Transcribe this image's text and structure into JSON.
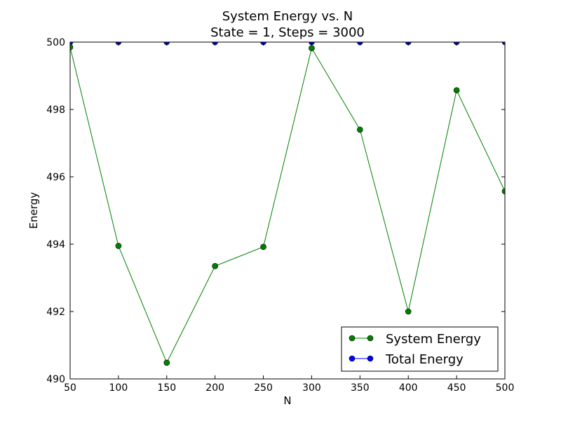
{
  "chart_data": {
    "type": "line",
    "title": "System Energy vs. N",
    "subtitle": "State = 1, Steps = 3000",
    "xlabel": "N",
    "ylabel": "Energy",
    "xlim": [
      50,
      500
    ],
    "ylim": [
      490,
      500
    ],
    "x": [
      50,
      100,
      150,
      200,
      250,
      300,
      350,
      400,
      450,
      500
    ],
    "x_ticks": [
      "50",
      "100",
      "150",
      "200",
      "250",
      "300",
      "350",
      "400",
      "450",
      "500"
    ],
    "y_ticks": [
      "490",
      "492",
      "494",
      "496",
      "498",
      "500"
    ],
    "grid": false,
    "legend_position": "bottom-right",
    "series": [
      {
        "name": "System Energy",
        "color": "#008000",
        "marker": "circle",
        "values": [
          499.85,
          493.95,
          490.48,
          493.35,
          493.92,
          499.82,
          497.4,
          492.0,
          498.57,
          495.57
        ]
      },
      {
        "name": "Total Energy",
        "color": "#0000ff",
        "marker": "circle",
        "values": [
          500,
          500,
          500,
          500,
          500,
          500,
          500,
          500,
          500,
          500
        ]
      }
    ]
  }
}
